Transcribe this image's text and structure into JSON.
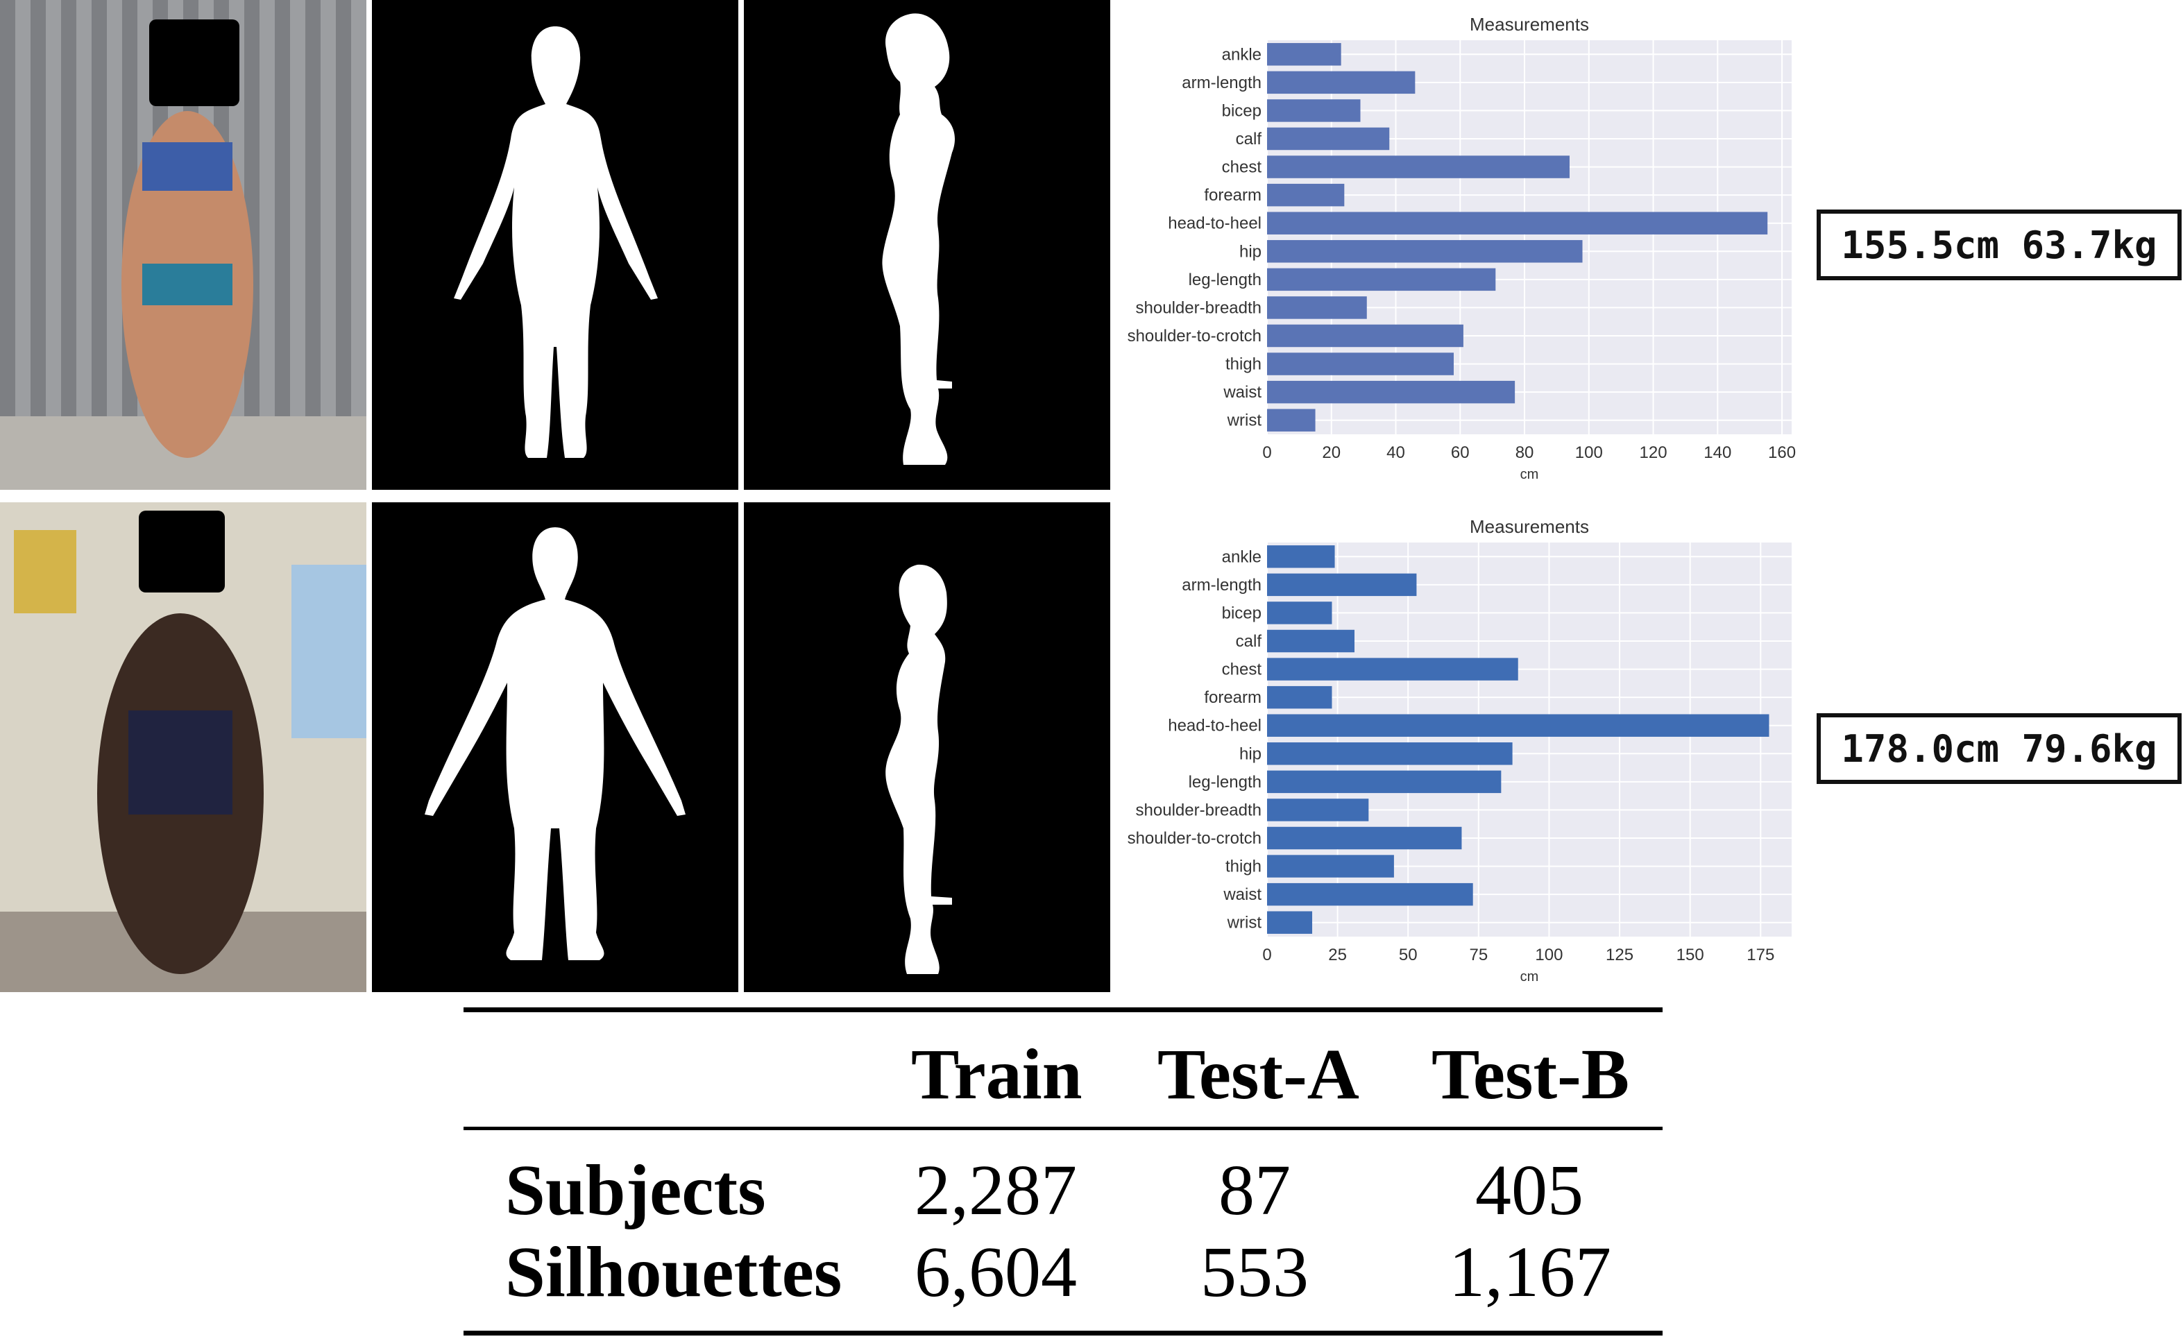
{
  "rows": [
    {
      "label": "155.5cm 63.7kg",
      "chart_data": {
        "type": "bar",
        "orientation": "horizontal",
        "title": "Measurements",
        "xlabel": "cm",
        "ylabel": "",
        "categories": [
          "ankle",
          "arm-length",
          "bicep",
          "calf",
          "chest",
          "forearm",
          "head-to-heel",
          "hip",
          "leg-length",
          "shoulder-breadth",
          "shoulder-to-crotch",
          "thigh",
          "waist",
          "wrist"
        ],
        "values": [
          23,
          46,
          29,
          38,
          94,
          24,
          155.5,
          98,
          71,
          31,
          61,
          58,
          77,
          15
        ],
        "xlim": [
          0,
          163
        ],
        "xticks": [
          0,
          20,
          40,
          60,
          80,
          100,
          120,
          140,
          160
        ],
        "grid": true,
        "bar_color": "#5a74b5"
      }
    },
    {
      "label": "178.0cm 79.6kg",
      "chart_data": {
        "type": "bar",
        "orientation": "horizontal",
        "title": "Measurements",
        "xlabel": "cm",
        "ylabel": "",
        "categories": [
          "ankle",
          "arm-length",
          "bicep",
          "calf",
          "chest",
          "forearm",
          "head-to-heel",
          "hip",
          "leg-length",
          "shoulder-breadth",
          "shoulder-to-crotch",
          "thigh",
          "waist",
          "wrist"
        ],
        "values": [
          24,
          53,
          23,
          31,
          89,
          23,
          178,
          87,
          83,
          36,
          69,
          45,
          73,
          16
        ],
        "xlim": [
          0,
          186
        ],
        "xticks": [
          0,
          25,
          50,
          75,
          100,
          125,
          150,
          175
        ],
        "grid": true,
        "bar_color": "#3f6db4"
      }
    }
  ],
  "table": {
    "headers": [
      "",
      "Train",
      "Test-A",
      "Test-B"
    ],
    "rows": [
      [
        "Subjects",
        "2,287",
        "87",
        "405"
      ],
      [
        "Silhouettes",
        "6,604",
        "553",
        "1,167"
      ]
    ]
  }
}
